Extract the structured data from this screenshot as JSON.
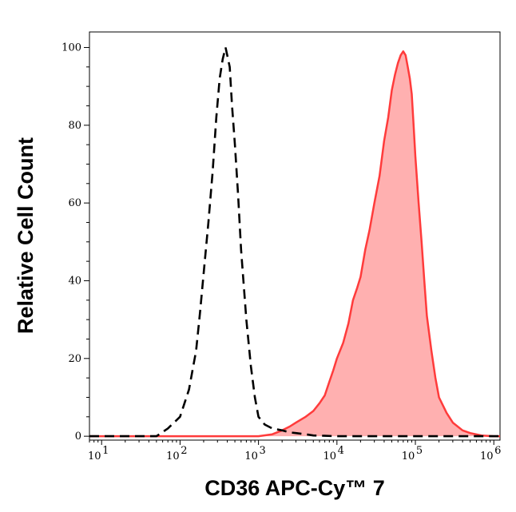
{
  "chart_data": {
    "type": "area",
    "title": "",
    "xlabel": "CD36 APC-Cy™ 7",
    "ylabel": "Relative Cell Count",
    "x_scale": "log",
    "xlim": [
      7,
      1200000
    ],
    "ylim": [
      -1,
      104
    ],
    "x_ticks": [
      {
        "value": 10,
        "label": "10",
        "exp": "1"
      },
      {
        "value": 100,
        "label": "10",
        "exp": "2"
      },
      {
        "value": 1000,
        "label": "10",
        "exp": "3"
      },
      {
        "value": 10000,
        "label": "10",
        "exp": "4"
      },
      {
        "value": 100000,
        "label": "10",
        "exp": "5"
      },
      {
        "value": 1000000,
        "label": "10",
        "exp": "6"
      }
    ],
    "y_ticks": [
      0,
      20,
      40,
      60,
      80,
      100
    ],
    "grid": false,
    "legend": "none",
    "series": [
      {
        "style": "dashed-line",
        "color": "#000000",
        "x": [
          7,
          50,
          70,
          100,
          130,
          160,
          180,
          200,
          230,
          260,
          290,
          320,
          350,
          380,
          400,
          430,
          460,
          500,
          550,
          600,
          700,
          800,
          900,
          1000,
          1200,
          1500,
          2000,
          2500,
          3000,
          4000,
          5000,
          7000,
          10000,
          100000,
          1200000
        ],
        "y": [
          0,
          0,
          2,
          5,
          12,
          22,
          32,
          42,
          55,
          68,
          82,
          92,
          97,
          100,
          98,
          95,
          85,
          75,
          62,
          48,
          30,
          18,
          10,
          5,
          3,
          2,
          1.5,
          1,
          0.8,
          0.5,
          0.2,
          0.1,
          0,
          0,
          0
        ]
      },
      {
        "style": "filled-area",
        "color": "#ff3b3b",
        "fill": "#ffb0b0",
        "x": [
          7,
          1000,
          1500,
          2000,
          2500,
          3000,
          4000,
          5000,
          6000,
          7000,
          8000,
          9000,
          10000,
          12000,
          14000,
          16000,
          18000,
          20000,
          23000,
          26000,
          30000,
          35000,
          40000,
          45000,
          50000,
          55000,
          60000,
          65000,
          70000,
          75000,
          80000,
          85000,
          90000,
          95000,
          100000,
          110000,
          120000,
          130000,
          140000,
          160000,
          180000,
          200000,
          250000,
          300000,
          400000,
          500000,
          700000,
          1000000,
          1200000
        ],
        "y": [
          0,
          0,
          0.5,
          1.5,
          2.5,
          3.5,
          5,
          6.5,
          8.5,
          10.5,
          14,
          17,
          20,
          24,
          29,
          35,
          38,
          41,
          48,
          53,
          60,
          67,
          76,
          82,
          89,
          93,
          96,
          98,
          99,
          98,
          95,
          92,
          88,
          80,
          72,
          60,
          50,
          40,
          31,
          22,
          15,
          10,
          6,
          3.5,
          1.5,
          0.8,
          0.2,
          0,
          0
        ]
      }
    ]
  }
}
